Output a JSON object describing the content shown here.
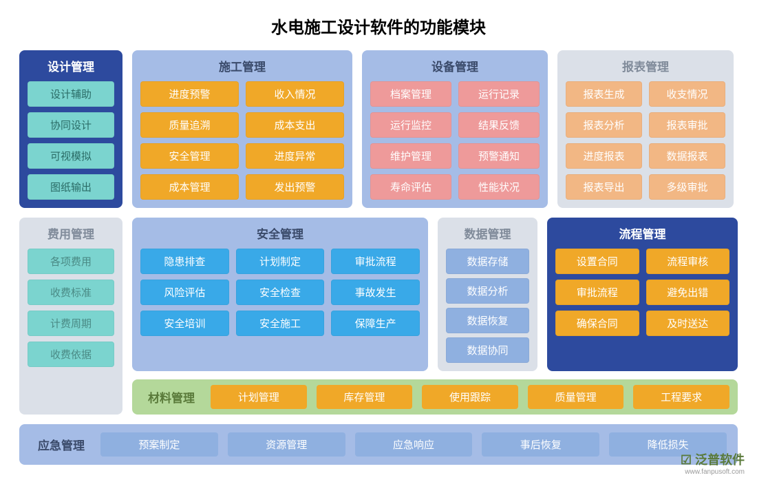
{
  "title": "水电施工设计软件的功能模块",
  "colors": {
    "darkblue": "#2d4a9e",
    "lightblue_bg": "#a5bce6",
    "gray_bg": "#dbe0e8",
    "teal": "#7bd4cf",
    "orange": "#f0a828",
    "pink": "#ee9a9a",
    "peach": "#f2b784",
    "cyan": "#39a9e8",
    "btn_lightblue": "#8fb0e0",
    "green_bg": "#b4d89a",
    "white": "#ffffff",
    "title_white": "#ffffff",
    "title_gray": "#808b9a",
    "title_dark": "#3a4a6a"
  },
  "row1": {
    "design": {
      "title": "设计管理",
      "bg": "darkblue",
      "title_color": "title_white",
      "item_bg": "teal",
      "item_color": "#2a6b66",
      "items": [
        "设计辅助",
        "协同设计",
        "可视模拟",
        "图纸输出"
      ]
    },
    "construction": {
      "title": "施工管理",
      "bg": "lightblue_bg",
      "title_color": "title_dark",
      "item_bg": "orange",
      "item_color": "#ffffff",
      "items": [
        "进度预警",
        "收入情况",
        "质量追溯",
        "成本支出",
        "安全管理",
        "进度异常",
        "成本管理",
        "发出预警"
      ]
    },
    "equipment": {
      "title": "设备管理",
      "bg": "lightblue_bg",
      "title_color": "title_dark",
      "item_bg": "pink",
      "item_color": "#ffffff",
      "items": [
        "档案管理",
        "运行记录",
        "运行监控",
        "结果反馈",
        "维护管理",
        "预警通知",
        "寿命评估",
        "性能状况"
      ]
    },
    "report": {
      "title": "报表管理",
      "bg": "gray_bg",
      "title_color": "title_gray",
      "item_bg": "peach",
      "item_color": "#ffffff",
      "items": [
        "报表生成",
        "收支情况",
        "报表分析",
        "报表审批",
        "进度报表",
        "数据报表",
        "报表导出",
        "多级审批"
      ]
    }
  },
  "row2": {
    "fee": {
      "title": "费用管理",
      "bg": "gray_bg",
      "title_color": "title_gray",
      "item_bg": "teal",
      "item_color": "#4a8a85",
      "items": [
        "各项费用",
        "收费标准",
        "计费周期",
        "收费依据"
      ]
    },
    "safety": {
      "title": "安全管理",
      "bg": "lightblue_bg",
      "title_color": "title_dark",
      "item_bg": "cyan",
      "item_color": "#ffffff",
      "items": [
        "隐患排查",
        "计划制定",
        "审批流程",
        "风险评估",
        "安全检查",
        "事故发生",
        "安全培训",
        "安全施工",
        "保障生产"
      ]
    },
    "data": {
      "title": "数据管理",
      "bg": "gray_bg",
      "title_color": "title_gray",
      "item_bg": "btn_lightblue",
      "item_color": "#ffffff",
      "items": [
        "数据存储",
        "数据分析",
        "数据恢复",
        "数据协同"
      ]
    },
    "process": {
      "title": "流程管理",
      "bg": "darkblue",
      "title_color": "title_white",
      "item_bg": "orange",
      "item_color": "#ffffff",
      "items": [
        "设置合同",
        "流程审核",
        "审批流程",
        "避免出错",
        "确保合同",
        "及时送达"
      ]
    }
  },
  "material_strip": {
    "title": "材料管理",
    "bg": "green_bg",
    "title_color": "#5a7a3a",
    "item_bg": "orange",
    "item_color": "#ffffff",
    "items": [
      "计划管理",
      "库存管理",
      "使用跟踪",
      "质量管理",
      "工程要求"
    ]
  },
  "emergency_strip": {
    "title": "应急管理",
    "bg": "lightblue_bg",
    "title_color": "title_dark",
    "item_bg": "btn_lightblue",
    "item_color": "#ffffff",
    "items": [
      "预案制定",
      "资源管理",
      "应急响应",
      "事后恢复",
      "降低损失"
    ]
  },
  "watermark": {
    "logo": "泛普软件",
    "url": "www.fanpusoft.com"
  }
}
